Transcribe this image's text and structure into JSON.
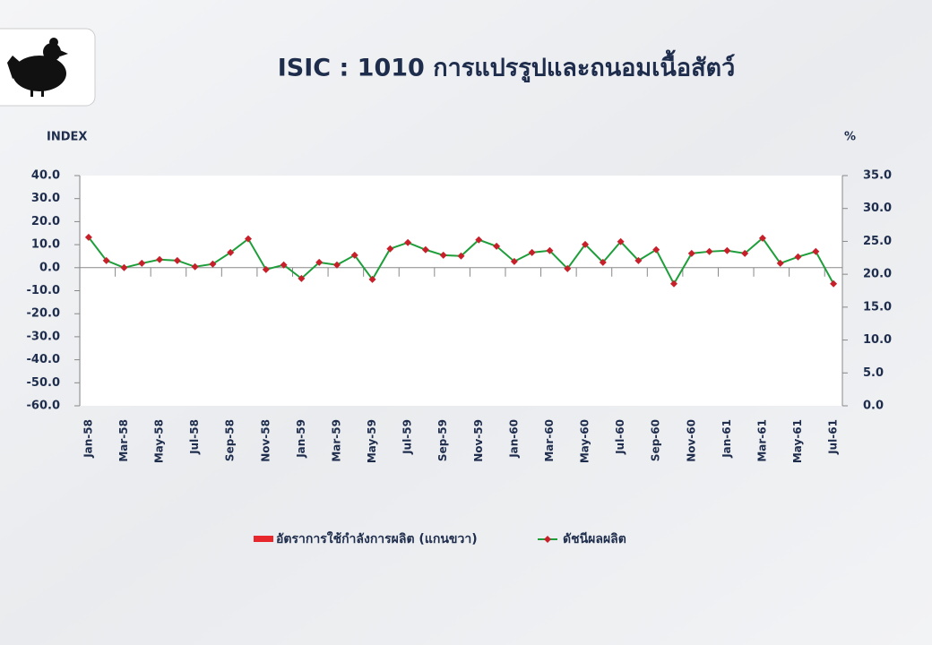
{
  "chart_data": {
    "type": "line",
    "title": "ISIC : 1010 การแปรรูปและถนอมเนื้อสัตว์",
    "y_label": "INDEX",
    "y2_label": "%",
    "categories": [
      "Jan-58",
      null,
      "Mar-58",
      null,
      "May-58",
      null,
      "Jul-58",
      null,
      "Sep-58",
      null,
      "Nov-58",
      null,
      "Jan-59",
      null,
      "Mar-59",
      null,
      "May-59",
      null,
      "Jul-59",
      null,
      "Sep-59",
      null,
      "Nov-59",
      null,
      "Jan-60",
      null,
      "Mar-60",
      null,
      "May-60",
      null,
      "Jul-60",
      null,
      "Sep-60",
      null,
      "Nov-60",
      null,
      "Jan-61",
      null,
      "Mar-61",
      null,
      "May-61",
      null,
      "Jul-61"
    ],
    "series": [
      {
        "name": "อัตราการใช้กำลังการผลิต (แกนขวา)",
        "color": "#e8272c",
        "axis": "y2",
        "values": [
          null,
          null,
          null,
          null,
          null,
          null,
          null,
          null,
          null,
          null,
          null,
          null,
          null,
          null,
          null,
          null,
          null,
          null,
          null,
          null,
          null,
          null,
          null,
          null,
          null,
          null,
          null,
          null,
          null,
          null,
          null,
          null,
          null,
          null,
          null,
          null,
          null,
          null,
          null,
          null,
          null,
          null,
          null
        ]
      },
      {
        "name": "ดัชนีผลผลิต",
        "color": "#1e9e3a",
        "marker_color": "#c8202a",
        "values": [
          13.2,
          3.1,
          0.0,
          1.9,
          3.5,
          3.1,
          0.4,
          1.6,
          6.6,
          12.5,
          -0.8,
          1.2,
          -4.7,
          2.3,
          1.2,
          5.4,
          -5.1,
          8.2,
          10.9,
          7.8,
          5.4,
          5.1,
          12.1,
          9.3,
          2.7,
          6.6,
          7.4,
          -0.4,
          10.1,
          2.3,
          11.3,
          3.1,
          7.8,
          -7.0,
          6.2,
          7.0,
          7.4,
          6.2,
          12.8,
          1.9,
          4.7,
          7.0,
          -7.0
        ]
      }
    ],
    "ylim": [
      -60,
      40
    ],
    "yticks": [
      {
        "value": -60,
        "label": "-60.0"
      },
      {
        "value": -50,
        "label": "-50.0"
      },
      {
        "value": -40,
        "label": "-40.0"
      },
      {
        "value": -30,
        "label": "-30.0"
      },
      {
        "value": -20,
        "label": "-20.0"
      },
      {
        "value": -10,
        "label": "-10.0"
      },
      {
        "value": 0,
        "label": "0.0"
      },
      {
        "value": 10,
        "label": "10.0"
      },
      {
        "value": 20,
        "label": "20.0"
      },
      {
        "value": 30,
        "label": "30.0"
      },
      {
        "value": 40,
        "label": "40.0"
      }
    ],
    "y2lim": [
      0,
      35
    ],
    "y2ticks": [
      {
        "value": 0,
        "label": "0.0"
      },
      {
        "value": 5,
        "label": "5.0"
      },
      {
        "value": 10,
        "label": "10.0"
      },
      {
        "value": 15,
        "label": "15.0"
      },
      {
        "value": 20,
        "label": "20.0"
      },
      {
        "value": 25,
        "label": "25.0"
      },
      {
        "value": 30,
        "label": "30.0"
      },
      {
        "value": 35,
        "label": "35.0"
      }
    ],
    "grid": false,
    "legend": "bottom"
  }
}
